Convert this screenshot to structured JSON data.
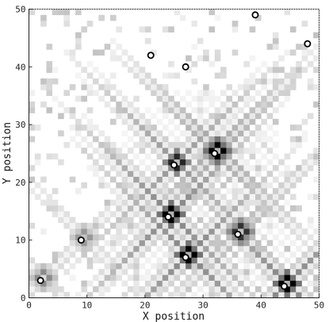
{
  "chart_data": {
    "type": "heatmap",
    "title": "",
    "xlabel": "X position",
    "ylabel": "Y position",
    "xlim": [
      0,
      50
    ],
    "ylim": [
      0,
      50
    ],
    "x_ticks": [
      "0",
      "10",
      "20",
      "30",
      "40",
      "50"
    ],
    "y_ticks": [
      "0",
      "10",
      "20",
      "30",
      "40",
      "50"
    ],
    "grid": false,
    "colormap": "white-to-black",
    "colors": {
      "min": "#ffffff",
      "max": "#000000",
      "marker_fill": "#ffffff",
      "marker_edge": "#000000"
    },
    "points": [
      {
        "x": 2,
        "y": 3
      },
      {
        "x": 9,
        "y": 10
      },
      {
        "x": 21,
        "y": 42
      },
      {
        "x": 27,
        "y": 40
      },
      {
        "x": 39,
        "y": 49
      },
      {
        "x": 48,
        "y": 44
      },
      {
        "x": 32,
        "y": 25
      },
      {
        "x": 25,
        "y": 23
      },
      {
        "x": 24,
        "y": 14
      },
      {
        "x": 36,
        "y": 11
      },
      {
        "x": 27,
        "y": 7
      },
      {
        "x": 44,
        "y": 2
      }
    ],
    "sources": [
      {
        "x": 32,
        "y": 25,
        "intensity": 1.0
      },
      {
        "x": 24,
        "y": 14,
        "intensity": 1.0
      },
      {
        "x": 27,
        "y": 7,
        "intensity": 1.0
      },
      {
        "x": 44,
        "y": 2,
        "intensity": 1.0
      },
      {
        "x": 25,
        "y": 23,
        "intensity": 0.85
      },
      {
        "x": 36,
        "y": 11,
        "intensity": 0.8
      },
      {
        "x": 9,
        "y": 10,
        "intensity": 0.4
      },
      {
        "x": 2,
        "y": 3,
        "intensity": 0.45
      }
    ]
  }
}
